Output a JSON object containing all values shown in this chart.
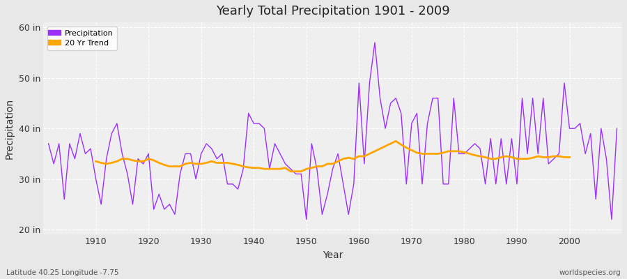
{
  "title": "Yearly Total Precipitation 1901 - 2009",
  "xlabel": "Year",
  "ylabel": "Precipitation",
  "subtitle_left": "Latitude 40.25 Longitude -7.75",
  "subtitle_right": "worldspecies.org",
  "ylim": [
    19,
    61
  ],
  "yticks": [
    20,
    30,
    40,
    50,
    60
  ],
  "ytick_labels": [
    "20 in",
    "30 in",
    "40 in",
    "50 in",
    "60 in"
  ],
  "precipitation_color": "#9B30FF",
  "trend_color": "#FFA500",
  "bg_color": "#E8E8E8",
  "inner_bg_color": "#EFEFEF",
  "grid_color": "#FFFFFF",
  "xlim": [
    1900,
    2010
  ],
  "years": [
    1901,
    1902,
    1903,
    1904,
    1905,
    1906,
    1907,
    1908,
    1909,
    1910,
    1911,
    1912,
    1913,
    1914,
    1915,
    1916,
    1917,
    1918,
    1919,
    1920,
    1921,
    1922,
    1923,
    1924,
    1925,
    1926,
    1927,
    1928,
    1929,
    1930,
    1931,
    1932,
    1933,
    1934,
    1935,
    1936,
    1937,
    1938,
    1939,
    1940,
    1941,
    1942,
    1943,
    1944,
    1945,
    1946,
    1947,
    1948,
    1949,
    1950,
    1951,
    1952,
    1953,
    1954,
    1955,
    1956,
    1957,
    1958,
    1959,
    1960,
    1961,
    1962,
    1963,
    1964,
    1965,
    1966,
    1967,
    1968,
    1969,
    1970,
    1971,
    1972,
    1973,
    1974,
    1975,
    1976,
    1977,
    1978,
    1979,
    1980,
    1981,
    1982,
    1983,
    1984,
    1985,
    1986,
    1987,
    1988,
    1989,
    1990,
    1991,
    1992,
    1993,
    1994,
    1995,
    1996,
    1997,
    1998,
    1999,
    2000,
    2001,
    2002,
    2003,
    2004,
    2005,
    2006,
    2007,
    2008,
    2009
  ],
  "precipitation": [
    37,
    33,
    37,
    26,
    37,
    34,
    39,
    35,
    36,
    30,
    25,
    34,
    39,
    41,
    35,
    31,
    25,
    34,
    33,
    35,
    24,
    27,
    24,
    25,
    23,
    31,
    35,
    35,
    30,
    35,
    37,
    36,
    34,
    35,
    29,
    29,
    28,
    32,
    43,
    41,
    41,
    40,
    32,
    37,
    35,
    33,
    32,
    31,
    31,
    22,
    37,
    32,
    23,
    27,
    32,
    35,
    29,
    23,
    29,
    49,
    33,
    49,
    57,
    46,
    40,
    45,
    46,
    43,
    29,
    41,
    43,
    29,
    41,
    46,
    46,
    29,
    29,
    46,
    35,
    35,
    36,
    37,
    36,
    29,
    38,
    29,
    38,
    29,
    38,
    29,
    46,
    35,
    46,
    35,
    46,
    33,
    34,
    35,
    49,
    40,
    40,
    41,
    35,
    39,
    26,
    40,
    34,
    22,
    40
  ],
  "trend_years": [
    1910,
    1911,
    1912,
    1913,
    1914,
    1915,
    1916,
    1917,
    1918,
    1919,
    1920,
    1921,
    1922,
    1923,
    1924,
    1925,
    1926,
    1927,
    1928,
    1929,
    1930,
    1931,
    1932,
    1933,
    1934,
    1935,
    1936,
    1937,
    1938,
    1939,
    1940,
    1941,
    1942,
    1943,
    1944,
    1945,
    1946,
    1947,
    1948,
    1949,
    1950,
    1951,
    1952,
    1953,
    1954,
    1955,
    1956,
    1957,
    1958,
    1959,
    1960,
    1961,
    1962,
    1963,
    1964,
    1965,
    1966,
    1967,
    1968,
    1969,
    1970,
    1971,
    1972,
    1973,
    1974,
    1975,
    1976,
    1977,
    1978,
    1979,
    1980,
    1981,
    1982,
    1983,
    1984,
    1985,
    1986,
    1987,
    1988,
    1989,
    1990,
    1991,
    1992,
    1993,
    1994,
    1995,
    1996,
    1997,
    1998,
    1999,
    2000
  ],
  "trend": [
    33.5,
    33.2,
    33.0,
    33.2,
    33.5,
    34.0,
    34.0,
    33.7,
    33.5,
    33.5,
    34.0,
    33.7,
    33.2,
    32.8,
    32.5,
    32.5,
    32.5,
    33.0,
    33.2,
    33.0,
    33.0,
    33.2,
    33.5,
    33.2,
    33.2,
    33.2,
    33.0,
    32.8,
    32.5,
    32.3,
    32.2,
    32.2,
    32.0,
    32.0,
    32.0,
    32.0,
    32.2,
    31.5,
    31.5,
    31.5,
    32.0,
    32.2,
    32.5,
    32.5,
    33.0,
    33.0,
    33.5,
    34.0,
    34.2,
    34.0,
    34.5,
    34.5,
    35.0,
    35.5,
    36.0,
    36.5,
    37.0,
    37.5,
    36.8,
    36.2,
    35.7,
    35.2,
    35.0,
    35.0,
    35.0,
    35.0,
    35.2,
    35.5,
    35.5,
    35.5,
    35.3,
    35.0,
    34.7,
    34.5,
    34.3,
    34.0,
    34.0,
    34.3,
    34.5,
    34.3,
    34.0,
    34.0,
    34.0,
    34.2,
    34.5,
    34.3,
    34.3,
    34.5,
    34.5,
    34.3,
    34.3
  ]
}
